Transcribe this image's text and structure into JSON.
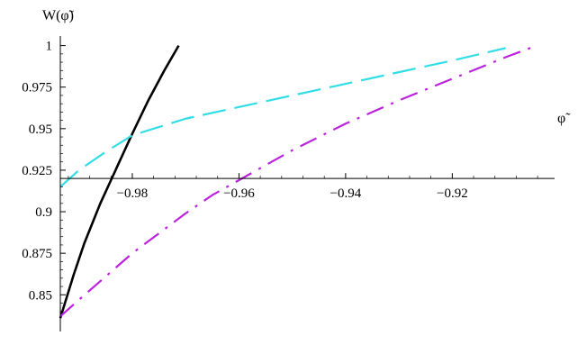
{
  "chart_data": {
    "type": "line",
    "xlabel": "φ̃",
    "ylabel": "W(φ̃)",
    "xlim": [
      -0.9935,
      -0.9025
    ],
    "ylim": [
      0.8355,
      1.0025
    ],
    "x_axis_crossing_y": 0.92,
    "y_axis_crossing_x": -0.9935,
    "x_ticks": [
      {
        "value": -0.98,
        "label": "−0.98"
      },
      {
        "value": -0.96,
        "label": "−0.96"
      },
      {
        "value": -0.94,
        "label": "−0.94"
      },
      {
        "value": -0.92,
        "label": "−0.92"
      }
    ],
    "y_ticks": [
      {
        "value": 0.85,
        "label": "0.85"
      },
      {
        "value": 0.875,
        "label": "0.875"
      },
      {
        "value": 0.9,
        "label": "0.9"
      },
      {
        "value": 0.925,
        "label": "0.925"
      },
      {
        "value": 0.95,
        "label": "0.95"
      },
      {
        "value": 0.975,
        "label": "0.975"
      },
      {
        "value": 1.0,
        "label": "1"
      }
    ],
    "series": [
      {
        "color": "#000000",
        "dash": "solid",
        "x": [
          -0.9935,
          -0.991,
          -0.989,
          -0.986,
          -0.983,
          -0.98,
          -0.977,
          -0.974,
          -0.9713
        ],
        "y": [
          0.836,
          0.862,
          0.881,
          0.905,
          0.926,
          0.947,
          0.967,
          0.985,
          1.0
        ]
      },
      {
        "color": "#33dde6",
        "dash": "long-dash",
        "x": [
          -0.9935,
          -0.99,
          -0.985,
          -0.98,
          -0.97,
          -0.96,
          -0.95,
          -0.94,
          -0.93,
          -0.92,
          -0.91
        ],
        "y": [
          0.915,
          0.925,
          0.936,
          0.946,
          0.956,
          0.963,
          0.97,
          0.977,
          0.984,
          0.991,
          0.9985
        ]
      },
      {
        "color": "#bb22dd",
        "dash": "dash-dot",
        "x": [
          -0.9935,
          -0.99,
          -0.985,
          -0.98,
          -0.975,
          -0.97,
          -0.965,
          -0.96,
          -0.95,
          -0.94,
          -0.93,
          -0.92,
          -0.91,
          -0.905
        ],
        "y": [
          0.837,
          0.847,
          0.861,
          0.875,
          0.887,
          0.899,
          0.91,
          0.919,
          0.937,
          0.953,
          0.967,
          0.98,
          0.993,
          0.999
        ]
      }
    ]
  }
}
